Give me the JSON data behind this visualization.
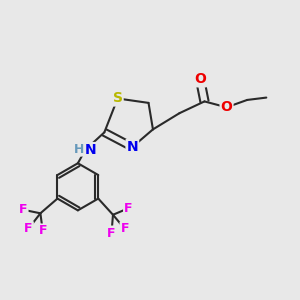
{
  "background_color": "#e8e8e8",
  "bond_color": "#2a2a2a",
  "bond_width": 1.5,
  "atom_colors": {
    "S": "#b8b800",
    "N": "#0000ee",
    "O": "#ee0000",
    "F": "#ee00ee",
    "H": "#6699bb",
    "C": "#2a2a2a"
  },
  "font_size_atoms": 10,
  "font_size_small": 9
}
